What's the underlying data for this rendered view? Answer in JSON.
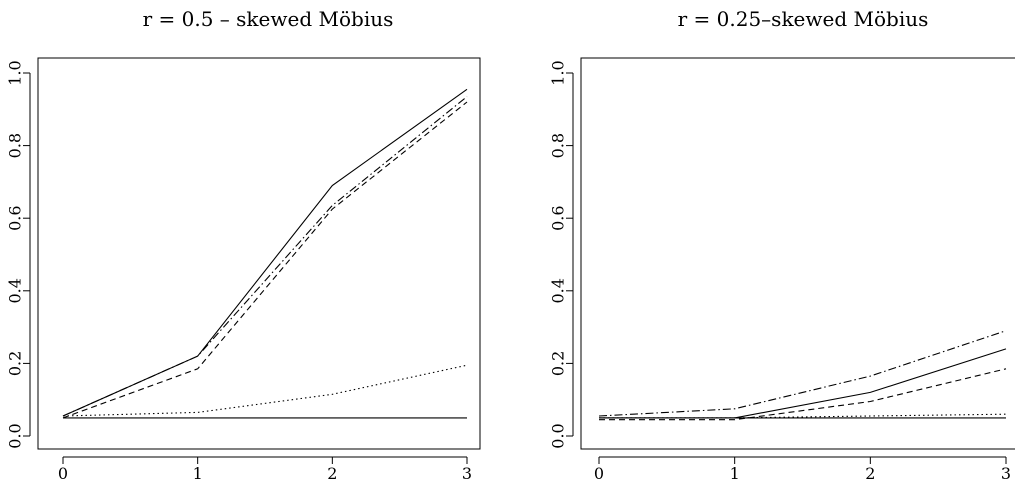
{
  "chart_data": [
    {
      "type": "line",
      "title": "r = 0.5 – skewed Möbius",
      "x": [
        0,
        1,
        2,
        3
      ],
      "xticks": [
        "0",
        "1",
        "2",
        "3"
      ],
      "yticks": [
        "0.0",
        "0.2",
        "0.4",
        "0.6",
        "0.8",
        "1.0"
      ],
      "xlim": [
        0,
        3
      ],
      "ylim": [
        0,
        1
      ],
      "grid": false,
      "series": [
        {
          "style": "solid",
          "values": [
            0.05,
            0.05,
            0.05,
            0.05
          ]
        },
        {
          "style": "solid",
          "values": [
            0.055,
            0.22,
            0.69,
            0.955
          ]
        },
        {
          "style": "dashdot",
          "values": [
            0.055,
            0.22,
            0.635,
            0.935
          ]
        },
        {
          "style": "dashed",
          "values": [
            0.05,
            0.185,
            0.625,
            0.92
          ]
        },
        {
          "style": "dotted",
          "values": [
            0.055,
            0.065,
            0.115,
            0.195
          ]
        }
      ]
    },
    {
      "type": "line",
      "title": "r = 0.25–skewed Möbius",
      "x": [
        0,
        1,
        2,
        3
      ],
      "xticks": [
        "0",
        "1",
        "2",
        "3"
      ],
      "yticks": [
        "0.0",
        "0.2",
        "0.4",
        "0.6",
        "0.8",
        "1.0"
      ],
      "xlim": [
        0,
        3
      ],
      "ylim": [
        0,
        1
      ],
      "grid": false,
      "series": [
        {
          "style": "solid",
          "values": [
            0.05,
            0.05,
            0.05,
            0.05
          ]
        },
        {
          "style": "dashdot",
          "values": [
            0.055,
            0.075,
            0.165,
            0.29
          ]
        },
        {
          "style": "solid",
          "values": [
            0.05,
            0.05,
            0.12,
            0.24
          ]
        },
        {
          "style": "dashed",
          "values": [
            0.045,
            0.045,
            0.095,
            0.185
          ]
        },
        {
          "style": "dotted",
          "values": [
            0.05,
            0.05,
            0.055,
            0.06
          ]
        }
      ]
    }
  ]
}
